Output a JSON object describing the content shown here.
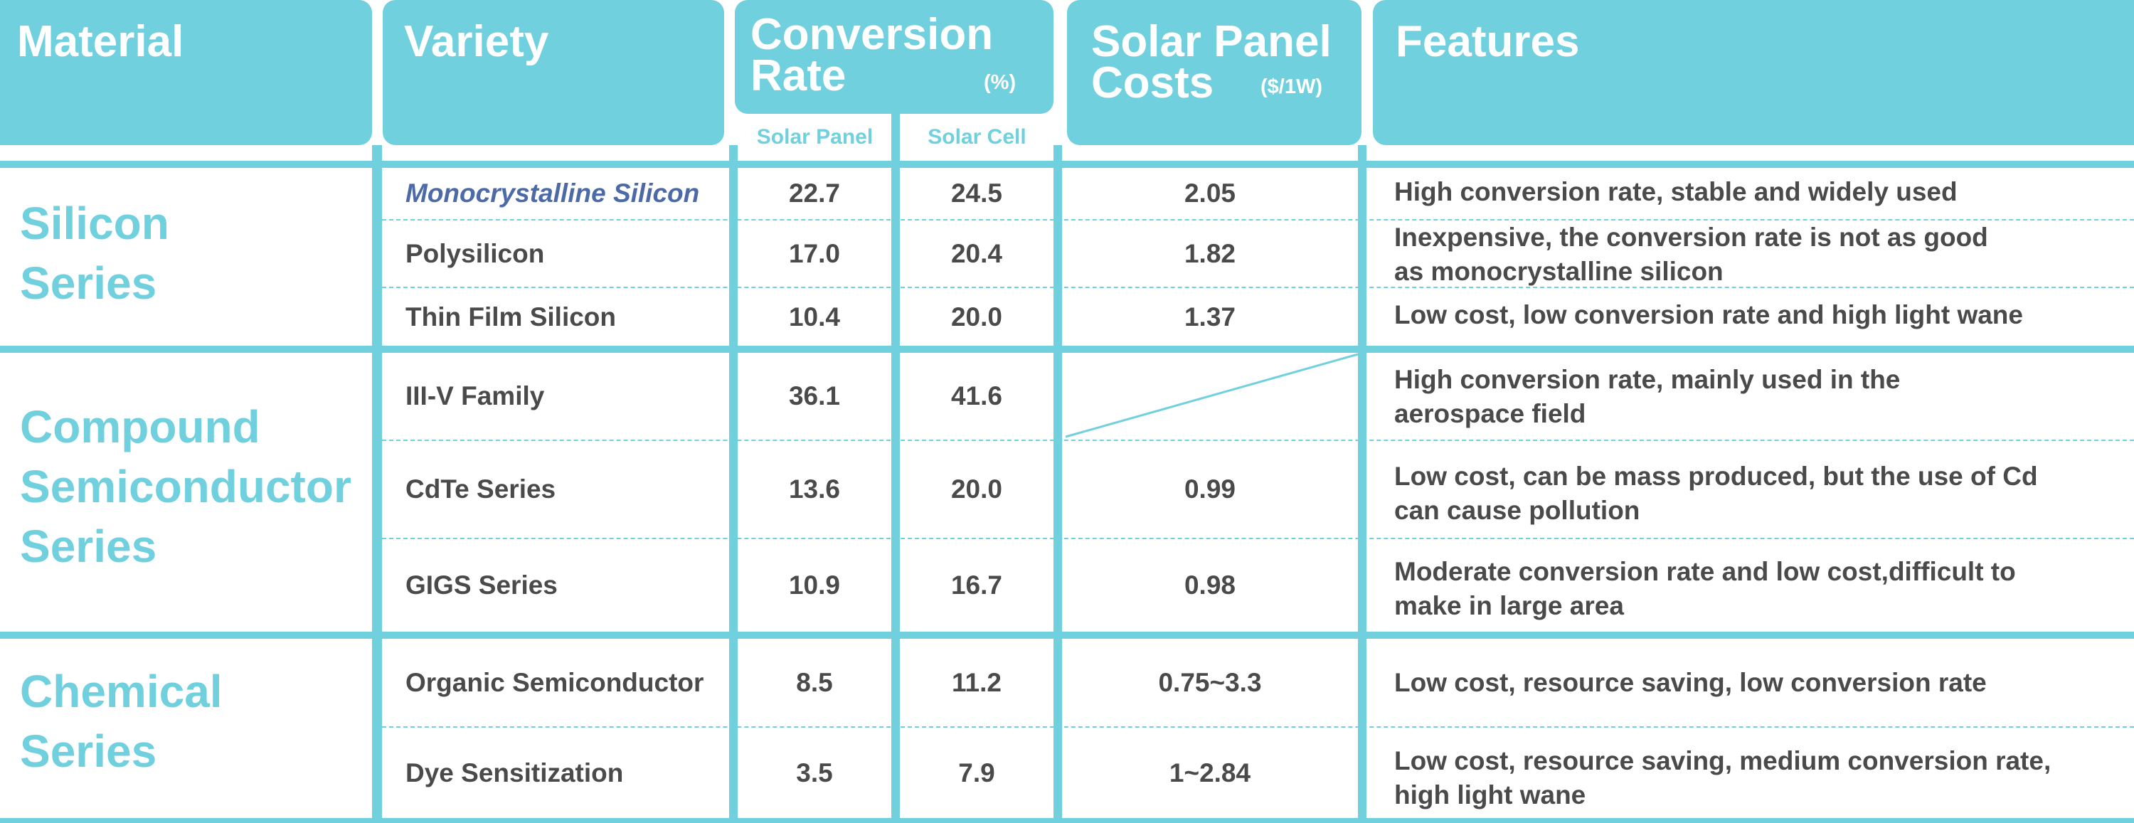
{
  "header": {
    "material": "Material",
    "variety": "Variety",
    "conversion_rate_line1": "Conversion",
    "conversion_rate_line2": "Rate",
    "conversion_rate_unit": "(%)",
    "costs_line1": "Solar Panel",
    "costs_line2": "Costs",
    "costs_unit": "($/1W)",
    "features": "Features",
    "sub_solar_panel": "Solar Panel",
    "sub_solar_cell": "Solar Cell"
  },
  "groups": [
    {
      "line1": "Silicon",
      "line2": "Series",
      "line3": ""
    },
    {
      "line1": "Compound",
      "line2": "Semiconductor",
      "line3": "Series"
    },
    {
      "line1": "Chemical",
      "line2": "Series",
      "line3": ""
    }
  ],
  "rows": [
    {
      "variety": "Monocrystalline Silicon",
      "panel": "22.7",
      "cell": "24.5",
      "cost": "2.05",
      "feature_l1": "High conversion rate, stable and widely used",
      "feature_l2": ""
    },
    {
      "variety": "Polysilicon",
      "panel": "17.0",
      "cell": "20.4",
      "cost": "1.82",
      "feature_l1": "Inexpensive, the conversion rate is not as good",
      "feature_l2": "as monocrystalline silicon"
    },
    {
      "variety": "Thin Film Silicon",
      "panel": "10.4",
      "cell": "20.0",
      "cost": "1.37",
      "feature_l1": "Low cost, low conversion rate and high light wane",
      "feature_l2": ""
    },
    {
      "variety": "III-V Family",
      "panel": "36.1",
      "cell": "41.6",
      "cost": "",
      "feature_l1": "High conversion rate, mainly used in the",
      "feature_l2": "aerospace field"
    },
    {
      "variety": "CdTe Series",
      "panel": "13.6",
      "cell": "20.0",
      "cost": "0.99",
      "feature_l1": "Low cost, can be mass produced, but the use of Cd",
      "feature_l2": "can cause pollution"
    },
    {
      "variety": "GIGS Series",
      "panel": "10.9",
      "cell": "16.7",
      "cost": "0.98",
      "feature_l1": "Moderate conversion rate and low cost,difficult to",
      "feature_l2": "make in large area"
    },
    {
      "variety": "Organic Semiconductor",
      "panel": "8.5",
      "cell": "11.2",
      "cost": "0.75~3.3",
      "feature_l1": "Low cost, resource saving, low conversion rate",
      "feature_l2": ""
    },
    {
      "variety": "Dye Sensitization",
      "panel": "3.5",
      "cell": "7.9",
      "cost": "1~2.84",
      "feature_l1": "Low cost, resource saving, medium conversion rate,",
      "feature_l2": "high light wane"
    }
  ],
  "colors": {
    "accent": "#70d0de",
    "text": "#4a4a4a",
    "highlight": "#4c6aa8"
  }
}
